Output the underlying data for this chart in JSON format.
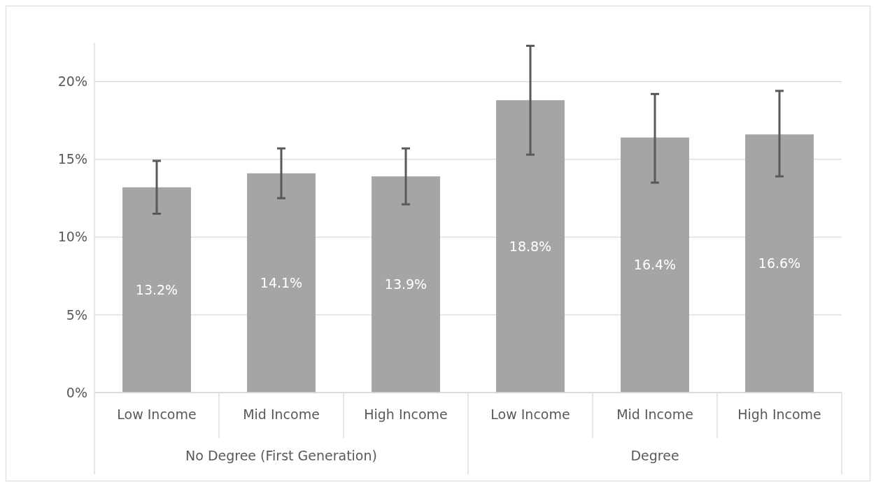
{
  "chart_data": {
    "type": "bar",
    "categories": [
      "Low Income",
      "Mid Income",
      "High Income",
      "Low Income",
      "Mid Income",
      "High Income"
    ],
    "values": [
      13.2,
      14.1,
      13.9,
      18.8,
      16.4,
      16.6
    ],
    "value_labels": [
      "13.2%",
      "14.1%",
      "13.9%",
      "18.8%",
      "16.4%",
      "16.6%"
    ],
    "errors": [
      [
        11.5,
        14.9
      ],
      [
        12.5,
        15.7
      ],
      [
        12.1,
        15.7
      ],
      [
        15.3,
        22.3
      ],
      [
        13.5,
        19.2
      ],
      [
        13.9,
        19.4
      ]
    ],
    "color": "#a5a5a5",
    "yticks": [
      {
        "value": 0,
        "label": "0%"
      },
      {
        "value": 5,
        "label": "5%"
      },
      {
        "value": 10,
        "label": "10%"
      },
      {
        "value": 15,
        "label": "15%"
      },
      {
        "value": 20,
        "label": "20%"
      }
    ],
    "ylim": [
      0,
      22.5
    ],
    "grid": "y",
    "annotations": [
      "No Degree (First Generation)",
      "Degree"
    ]
  }
}
